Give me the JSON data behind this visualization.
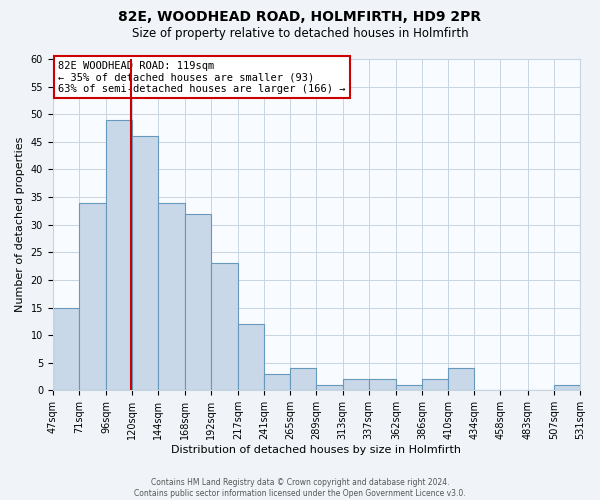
{
  "title": "82E, WOODHEAD ROAD, HOLMFIRTH, HD9 2PR",
  "subtitle": "Size of property relative to detached houses in Holmfirth",
  "xlabel": "Distribution of detached houses by size in Holmfirth",
  "ylabel": "Number of detached properties",
  "bin_edges": [
    47,
    71,
    96,
    120,
    144,
    168,
    192,
    217,
    241,
    265,
    289,
    313,
    337,
    362,
    386,
    410,
    434,
    458,
    483,
    507,
    531
  ],
  "bin_counts": [
    15,
    34,
    49,
    46,
    34,
    32,
    23,
    12,
    3,
    4,
    1,
    2,
    2,
    1,
    2,
    4,
    0,
    0,
    0,
    1
  ],
  "bar_color": "#c8d8e8",
  "bar_edge_color": "#6699bb",
  "vline_x": 119,
  "vline_color": "#cc0000",
  "annotation_text": "82E WOODHEAD ROAD: 119sqm\n← 35% of detached houses are smaller (93)\n63% of semi-detached houses are larger (166) →",
  "annotation_box_color": "#ffffff",
  "annotation_box_edge_color": "#cc0000",
  "ylim": [
    0,
    60
  ],
  "yticks": [
    0,
    5,
    10,
    15,
    20,
    25,
    30,
    35,
    40,
    45,
    50,
    55,
    60
  ],
  "tick_labels": [
    "47sqm",
    "71sqm",
    "96sqm",
    "120sqm",
    "144sqm",
    "168sqm",
    "192sqm",
    "217sqm",
    "241sqm",
    "265sqm",
    "289sqm",
    "313sqm",
    "337sqm",
    "362sqm",
    "386sqm",
    "410sqm",
    "434sqm",
    "458sqm",
    "483sqm",
    "507sqm",
    "531sqm"
  ],
  "footer_text": "Contains HM Land Registry data © Crown copyright and database right 2024.\nContains public sector information licensed under the Open Government Licence v3.0.",
  "background_color": "#f0f4f8",
  "plot_background_color": "#f8fbff",
  "grid_color": "#c8d4e0",
  "title_fontsize": 10,
  "subtitle_fontsize": 8.5,
  "ylabel_fontsize": 8,
  "xlabel_fontsize": 8,
  "tick_fontsize": 7,
  "annotation_fontsize": 7.5,
  "footer_fontsize": 5.5
}
